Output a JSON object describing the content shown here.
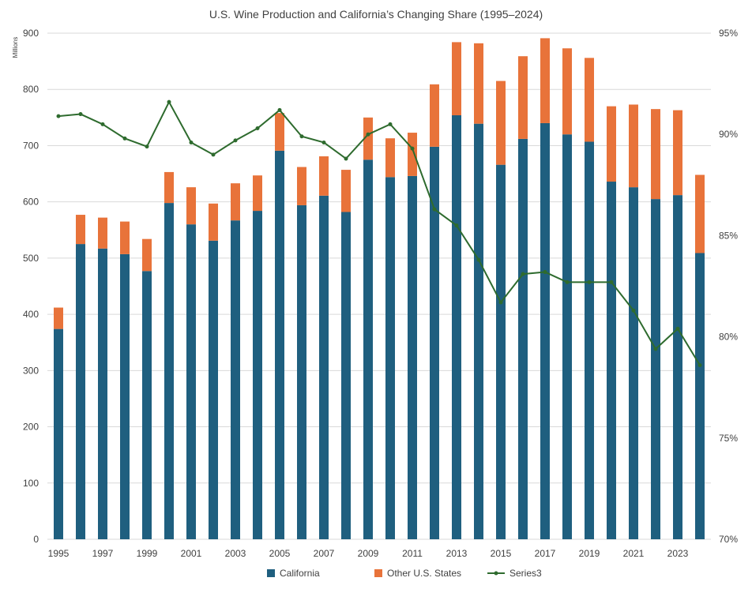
{
  "chart_data": {
    "type": "bar",
    "title": "U.S. Wine Production and California’s Changing Share (1995–2024)",
    "y_unit_label": "Millions",
    "categories": [
      1995,
      1996,
      1997,
      1998,
      1999,
      2000,
      2001,
      2002,
      2003,
      2004,
      2005,
      2006,
      2007,
      2008,
      2009,
      2010,
      2011,
      2012,
      2013,
      2014,
      2015,
      2016,
      2017,
      2018,
      2019,
      2020,
      2021,
      2022,
      2023,
      2024
    ],
    "x_tick_labels": [
      "1995",
      "1997",
      "1999",
      "2001",
      "2003",
      "2005",
      "2007",
      "2009",
      "2011",
      "2013",
      "2015",
      "2017",
      "2019",
      "2021",
      "2023"
    ],
    "ylim": [
      0,
      900
    ],
    "y_ticks": [
      0,
      100,
      200,
      300,
      400,
      500,
      600,
      700,
      800,
      900
    ],
    "y2lim": [
      0.7,
      0.95
    ],
    "y2_ticks": [
      "70%",
      "75%",
      "80%",
      "85%",
      "90%",
      "95%"
    ],
    "legend_position": "bottom",
    "series": [
      {
        "name": "California",
        "kind": "bar",
        "stack": "total",
        "color": "#1f5f7f",
        "values": [
          374,
          525,
          517,
          507,
          477,
          598,
          560,
          531,
          567,
          584,
          691,
          594,
          611,
          582,
          675,
          644,
          646,
          698,
          754,
          739,
          666,
          712,
          740,
          720,
          707,
          636,
          626,
          605,
          612,
          509
        ]
      },
      {
        "name": "Other U.S. States",
        "kind": "bar",
        "stack": "total",
        "color": "#e8733a",
        "values": [
          38,
          52,
          55,
          58,
          57,
          55,
          66,
          66,
          66,
          63,
          67,
          68,
          70,
          75,
          75,
          69,
          77,
          111,
          130,
          143,
          149,
          147,
          151,
          153,
          149,
          134,
          147,
          160,
          151,
          139
        ]
      },
      {
        "name": "Series3",
        "kind": "line",
        "axis": "secondary",
        "color": "#2e6b2e",
        "values": [
          0.909,
          0.91,
          0.905,
          0.898,
          0.894,
          0.916,
          0.896,
          0.89,
          0.897,
          0.903,
          0.912,
          0.899,
          0.896,
          0.888,
          0.9,
          0.905,
          0.893,
          0.863,
          0.855,
          0.838,
          0.817,
          0.831,
          0.832,
          0.827,
          0.827,
          0.827,
          0.813,
          0.794,
          0.804,
          0.786
        ]
      }
    ]
  }
}
